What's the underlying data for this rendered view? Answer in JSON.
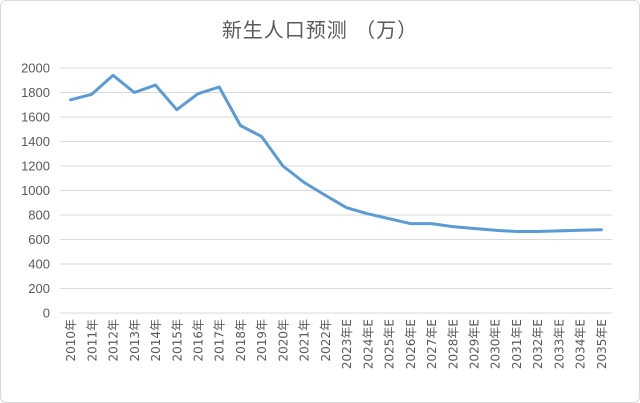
{
  "chart_data": {
    "type": "line",
    "title": "新生人口预测 （万）",
    "xlabel": "",
    "ylabel": "",
    "ylim": [
      0,
      2000
    ],
    "yticks": [
      0,
      200,
      400,
      600,
      800,
      1000,
      1200,
      1400,
      1600,
      1800,
      2000
    ],
    "grid": true,
    "legend": "none",
    "categories": [
      "2010年",
      "2011年",
      "2012年",
      "2013年",
      "2014年",
      "2015年",
      "2016年",
      "2017年",
      "2018年",
      "2019年",
      "2020年",
      "2021年",
      "2022年",
      "2023年E",
      "2024年E",
      "2025年E",
      "2026年E",
      "2027年E",
      "2028年E",
      "2029年E",
      "2030年E",
      "2031年E",
      "2032年E",
      "2033年E",
      "2034年E",
      "2035年E"
    ],
    "series": [
      {
        "color": "#5b9bd5",
        "values": [
          1740,
          1785,
          1940,
          1800,
          1860,
          1660,
          1790,
          1845,
          1530,
          1440,
          1200,
          1065,
          960,
          860,
          810,
          770,
          730,
          730,
          705,
          690,
          675,
          665,
          665,
          670,
          675,
          680
        ]
      }
    ]
  }
}
